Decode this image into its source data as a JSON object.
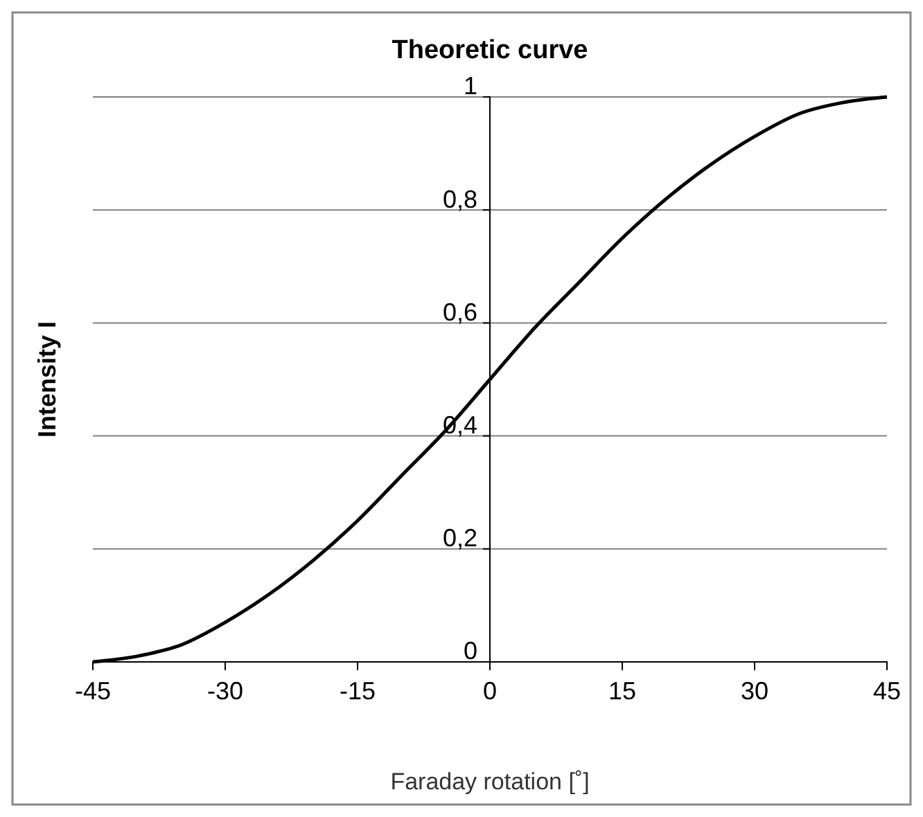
{
  "chart_data": {
    "type": "line",
    "title": "Theoretic curve",
    "xlabel": "Faraday rotation  [˚]",
    "ylabel": "Intensity I",
    "x": [
      -45,
      -40,
      -35,
      -30,
      -25,
      -20,
      -15,
      -10,
      -5,
      0,
      5,
      10,
      15,
      20,
      25,
      30,
      35,
      40,
      45
    ],
    "series": [
      {
        "color": "#000000",
        "values": [
          0,
          0.01,
          0.03,
          0.07,
          0.12,
          0.18,
          0.25,
          0.33,
          0.41,
          0.5,
          0.59,
          0.67,
          0.75,
          0.82,
          0.88,
          0.93,
          0.97,
          0.99,
          1
        ]
      }
    ],
    "xlim": [
      -45,
      45
    ],
    "xticks": [
      -45,
      -30,
      -15,
      0,
      15,
      30,
      45
    ],
    "ylim": [
      0,
      1
    ],
    "yticks": [
      0,
      {
        "value": 0.2,
        "label": "0,2"
      },
      {
        "value": 0.4,
        "label": "0,4"
      },
      {
        "value": 0.6,
        "label": "0,6"
      },
      {
        "value": 0.8,
        "label": "0,8"
      },
      1
    ],
    "grid": "y",
    "marker": "none",
    "line_style": "solid"
  }
}
